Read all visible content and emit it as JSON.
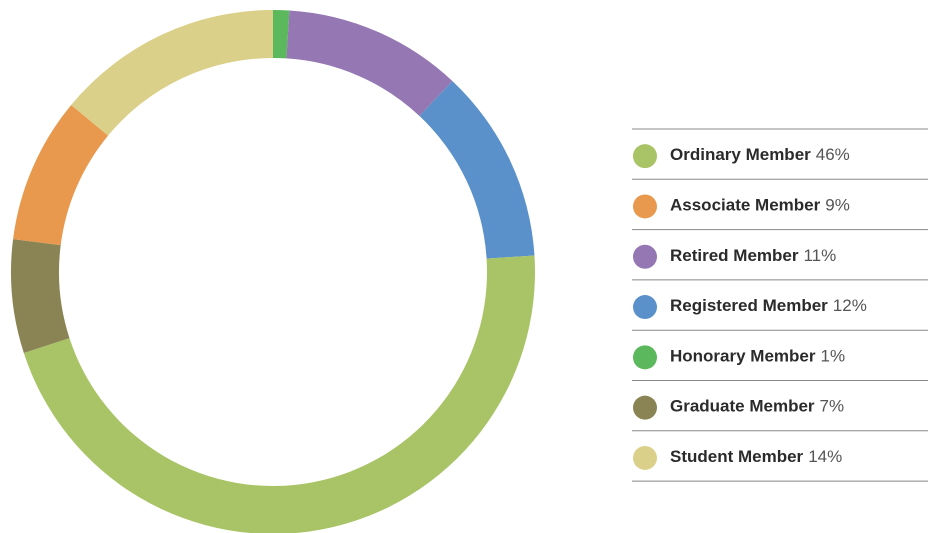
{
  "chart_data": {
    "type": "pie",
    "categories": [
      "Ordinary Member",
      "Associate Member",
      "Retired Member",
      "Registered Member",
      "Honorary Member",
      "Graduate Member",
      "Student Member"
    ],
    "values": [
      46,
      9,
      11,
      12,
      1,
      7,
      14
    ],
    "value_labels": [
      "46%",
      "9%",
      "11%",
      "12%",
      "1%",
      "7%",
      "14%"
    ],
    "colors": [
      "#a9c466",
      "#e8994e",
      "#9578b3",
      "#5b91cb",
      "#5cb85c",
      "#8a8455",
      "#dbd089"
    ]
  }
}
